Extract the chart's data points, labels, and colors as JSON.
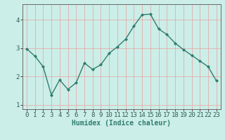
{
  "x": [
    0,
    1,
    2,
    3,
    4,
    5,
    6,
    7,
    8,
    9,
    10,
    11,
    12,
    13,
    14,
    15,
    16,
    17,
    18,
    19,
    20,
    21,
    22,
    23
  ],
  "y": [
    2.98,
    2.72,
    2.35,
    1.35,
    1.88,
    1.55,
    1.78,
    2.48,
    2.25,
    2.42,
    2.82,
    3.05,
    3.32,
    3.78,
    4.18,
    4.2,
    3.68,
    3.48,
    3.18,
    2.95,
    2.75,
    2.55,
    2.35,
    1.85
  ],
  "line_color": "#2e7d6e",
  "marker": "D",
  "marker_size": 2.0,
  "bg_color": "#cceee8",
  "grid_color_v": "#e8a0a0",
  "grid_color_h": "#e8a0a0",
  "xlabel": "Humidex (Indice chaleur)",
  "xlim": [
    -0.5,
    23.5
  ],
  "ylim": [
    0.85,
    4.55
  ],
  "yticks": [
    1,
    2,
    3,
    4
  ],
  "xticks": [
    0,
    1,
    2,
    3,
    4,
    5,
    6,
    7,
    8,
    9,
    10,
    11,
    12,
    13,
    14,
    15,
    16,
    17,
    18,
    19,
    20,
    21,
    22,
    23
  ],
  "xlabel_fontsize": 7,
  "tick_fontsize": 6.5,
  "line_width": 1.0
}
